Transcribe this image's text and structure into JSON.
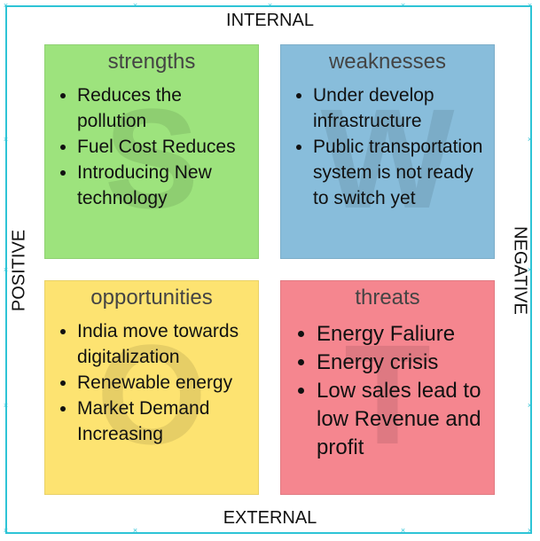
{
  "axes": {
    "top": "INTERNAL",
    "bottom": "EXTERNAL",
    "left": "POSITIVE",
    "right": "NEGATIVE"
  },
  "colors": {
    "frame": "#2ec4d6",
    "strengths": "#9de37d",
    "weaknesses": "#88bddb",
    "opportunities": "#fde371",
    "threats": "#f5868f"
  },
  "quadrants": {
    "strengths": {
      "title": "strengths",
      "letter": "S",
      "items": [
        "Reduces the pollution",
        "Fuel Cost Reduces",
        "Introducing New technology"
      ]
    },
    "weaknesses": {
      "title": "weaknesses",
      "letter": "W",
      "items": [
        "Under develop infrastructure",
        "Public transportation system is not ready to switch yet"
      ]
    },
    "opportunities": {
      "title": "opportunities",
      "letter": "O",
      "items": [
        "India move towards digitalization",
        "Renewable energy",
        "Market Demand Increasing"
      ]
    },
    "threats": {
      "title": "threats",
      "letter": "T",
      "items": [
        "Energy Faliure",
        "Energy crisis",
        "Low sales lead to low Revenue and profit"
      ]
    }
  }
}
